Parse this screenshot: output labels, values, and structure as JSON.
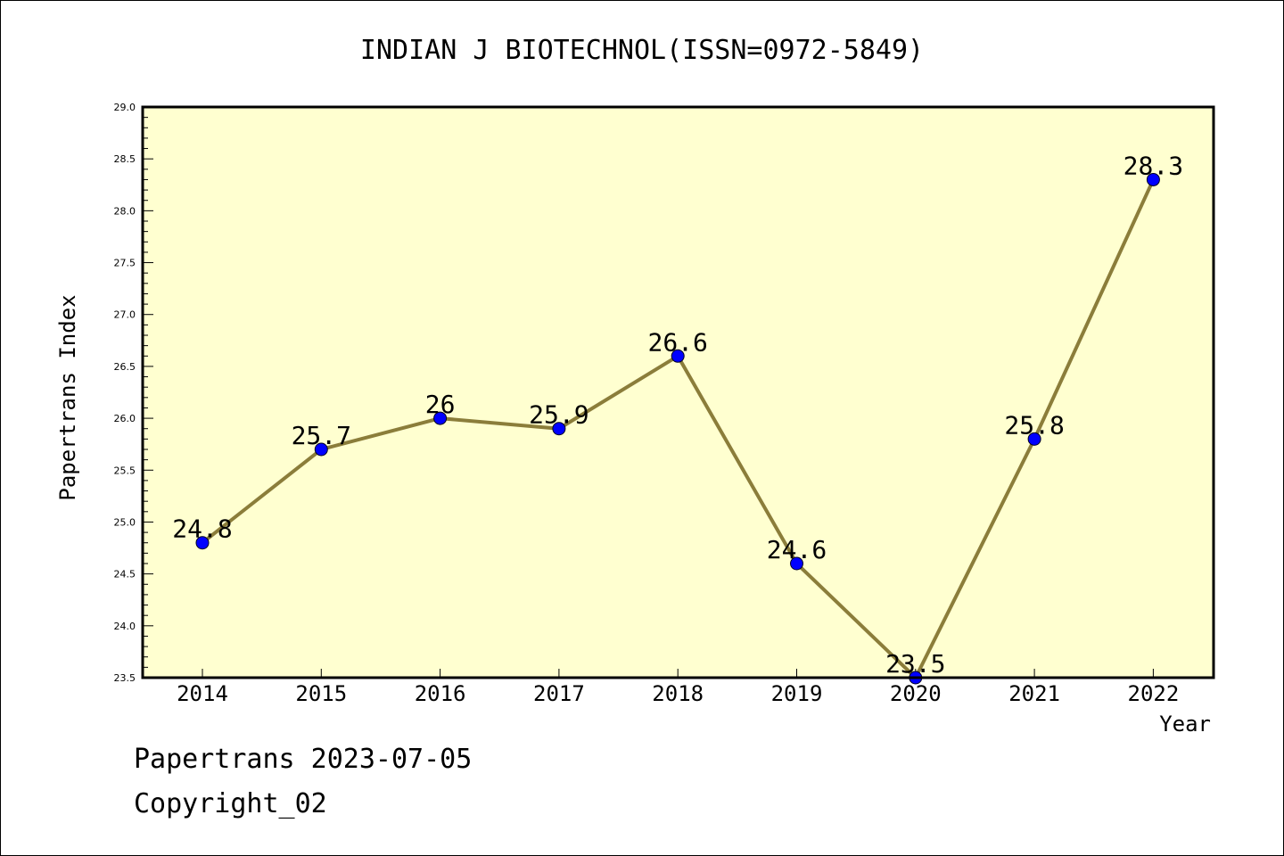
{
  "chart_data": {
    "type": "line",
    "title": "INDIAN J BIOTECHNOL(ISSN=0972-5849)",
    "xlabel": "Year",
    "ylabel": "Papertrans Index",
    "categories": [
      "2014",
      "2015",
      "2016",
      "2017",
      "2018",
      "2019",
      "2020",
      "2021",
      "2022"
    ],
    "values": [
      24.8,
      25.7,
      26,
      25.9,
      26.6,
      24.6,
      23.5,
      25.8,
      28.3
    ],
    "value_labels": [
      "24.8",
      "25.7",
      "26",
      "25.9",
      "26.6",
      "24.6",
      "23.5",
      "25.8",
      "28.3"
    ],
    "ylim": [
      23.5,
      29.0
    ],
    "yticks": [
      "23.5",
      "24.0",
      "24.5",
      "25.0",
      "25.5",
      "26.0",
      "26.5",
      "27.0",
      "27.5",
      "28.0",
      "28.5",
      "29.0"
    ],
    "grid": false,
    "legend": "none",
    "colors": {
      "plot_background": "#ffffd0",
      "line": "#8b7d3a",
      "marker": "#0000ff"
    }
  },
  "footer": {
    "line1": "Papertrans 2023-07-05",
    "line2": "Copyright_02"
  }
}
